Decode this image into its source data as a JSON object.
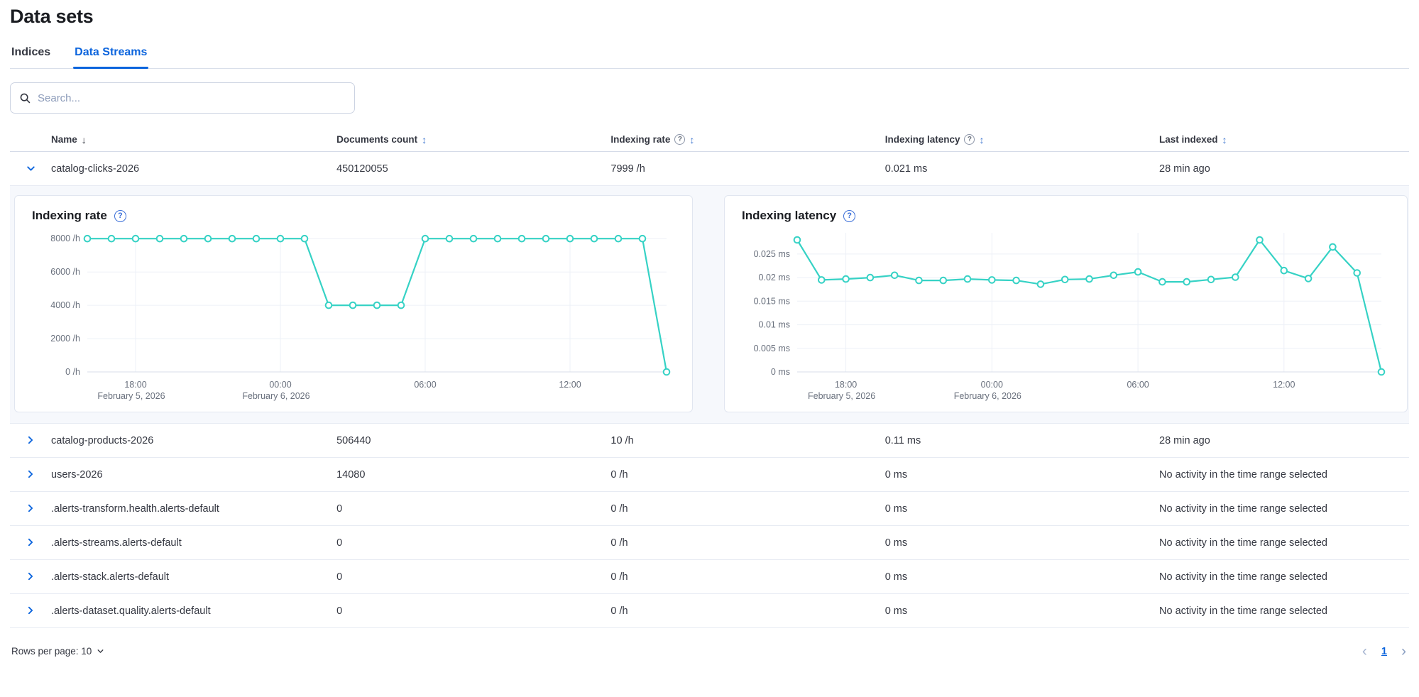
{
  "page": {
    "title": "Data sets"
  },
  "tabs": [
    {
      "label": "Indices",
      "active": false
    },
    {
      "label": "Data Streams",
      "active": true
    }
  ],
  "search": {
    "placeholder": "Search...",
    "value": "",
    "icon": "magnifier"
  },
  "table": {
    "columns": [
      {
        "label": "Name",
        "sort_icon": "arrow-down",
        "state": "sorted"
      },
      {
        "label": "Documents count",
        "sort_icon": "double-arrow"
      },
      {
        "label": "Indexing rate",
        "help_icon": "question-circle",
        "sort_icon": "double-arrow"
      },
      {
        "label": "Indexing latency",
        "help_icon": "question-circle",
        "sort_icon": "double-arrow"
      },
      {
        "label": "Last indexed",
        "sort_icon": "double-arrow"
      }
    ],
    "rows": [
      {
        "name": "catalog-clicks-2026",
        "documents": "450120055",
        "rate": "7999 /h",
        "latency": "0.021 ms",
        "last_indexed": "28 min ago",
        "expanded": true
      },
      {
        "name": "catalog-products-2026",
        "documents": "506440",
        "rate": "10 /h",
        "latency": "0.11 ms",
        "last_indexed": "28 min ago",
        "expanded": false
      },
      {
        "name": "users-2026",
        "documents": "14080",
        "rate": "0 /h",
        "latency": "0 ms",
        "last_indexed": "No activity in the time range selected",
        "expanded": false
      },
      {
        "name": ".alerts-transform.health.alerts-default",
        "documents": "0",
        "rate": "0 /h",
        "latency": "0 ms",
        "last_indexed": "No activity in the time range selected",
        "expanded": false
      },
      {
        "name": ".alerts-streams.alerts-default",
        "documents": "0",
        "rate": "0 /h",
        "latency": "0 ms",
        "last_indexed": "No activity in the time range selected",
        "expanded": false
      },
      {
        "name": ".alerts-stack.alerts-default",
        "documents": "0",
        "rate": "0 /h",
        "latency": "0 ms",
        "last_indexed": "No activity in the time range selected",
        "expanded": false
      },
      {
        "name": ".alerts-dataset.quality.alerts-default",
        "documents": "0",
        "rate": "0 /h",
        "latency": "0 ms",
        "last_indexed": "No activity in the time range selected",
        "expanded": false
      }
    ]
  },
  "footer": {
    "rows_per_page": "Rows per page: 10",
    "current_page": "1",
    "prev_icon": "chevron-left",
    "next_icon": "chevron-right"
  },
  "colors": {
    "accent_blue": "#0b64dd",
    "chart_teal": "#36d2c5",
    "grid_line": "#edf0f7",
    "axis_text": "#69707d"
  },
  "chart_data": [
    {
      "type": "line",
      "title": "Indexing rate",
      "help_icon": "question-circle",
      "unit": "/h",
      "x_start": "February 5, 2026 16:00",
      "x_interval": "1 hour",
      "x_points": 25,
      "values": [
        8000,
        8000,
        8000,
        8000,
        8000,
        8000,
        8000,
        8000,
        8000,
        8000,
        4000,
        4000,
        4000,
        4000,
        8000,
        8000,
        8000,
        8000,
        8000,
        8000,
        8000,
        8000,
        8000,
        8000,
        0
      ],
      "ylim": [
        0,
        8350
      ],
      "yticks": [
        {
          "v": 0,
          "label": "0 /h"
        },
        {
          "v": 2000,
          "label": "2000 /h"
        },
        {
          "v": 4000,
          "label": "4000 /h"
        },
        {
          "v": 6000,
          "label": "6000 /h"
        },
        {
          "v": 8000,
          "label": "8000 /h"
        }
      ],
      "xticks": [
        {
          "i": 2,
          "label": "18:00",
          "sublabel": "February 5, 2026"
        },
        {
          "i": 8,
          "label": "00:00",
          "sublabel": "February 6, 2026"
        },
        {
          "i": 14,
          "label": "06:00"
        },
        {
          "i": 20,
          "label": "12:00"
        }
      ],
      "grid": true,
      "legend": "none"
    },
    {
      "type": "line",
      "title": "Indexing latency",
      "help_icon": "question-circle",
      "unit": "ms",
      "x_start": "February 5, 2026 16:00",
      "x_interval": "1 hour",
      "x_points": 25,
      "values": [
        0.028,
        0.0195,
        0.0197,
        0.02,
        0.0205,
        0.0194,
        0.0194,
        0.0197,
        0.0195,
        0.0194,
        0.0186,
        0.0196,
        0.0197,
        0.0205,
        0.0212,
        0.0191,
        0.0191,
        0.0196,
        0.0201,
        0.028,
        0.0215,
        0.0198,
        0.0265,
        0.021,
        0
      ],
      "ylim": [
        0,
        0.0295
      ],
      "yticks": [
        {
          "v": 0,
          "label": "0 ms"
        },
        {
          "v": 0.005,
          "label": "0.005 ms"
        },
        {
          "v": 0.01,
          "label": "0.01 ms"
        },
        {
          "v": 0.015,
          "label": "0.015 ms"
        },
        {
          "v": 0.02,
          "label": "0.02 ms"
        },
        {
          "v": 0.025,
          "label": "0.025 ms"
        }
      ],
      "xticks": [
        {
          "i": 2,
          "label": "18:00",
          "sublabel": "February 5, 2026"
        },
        {
          "i": 8,
          "label": "00:00",
          "sublabel": "February 6, 2026"
        },
        {
          "i": 14,
          "label": "06:00"
        },
        {
          "i": 20,
          "label": "12:00"
        }
      ],
      "grid": true,
      "legend": "none"
    }
  ]
}
